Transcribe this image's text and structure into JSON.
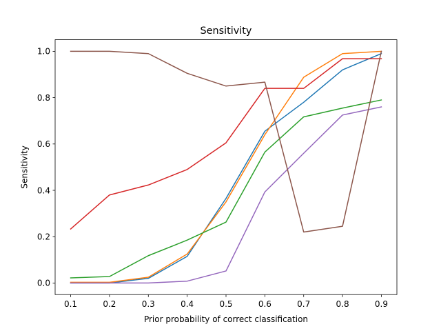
{
  "chart_data": {
    "type": "line",
    "title": "Sensitivity",
    "xlabel": "Prior probability of correct classification",
    "ylabel": "Sensitivity",
    "x": [
      0.1,
      0.2,
      0.3,
      0.4,
      0.5,
      0.6,
      0.7,
      0.8,
      0.9
    ],
    "xlim": [
      0.06,
      0.94
    ],
    "ylim": [
      -0.05,
      1.05
    ],
    "xticks": [
      "0.1",
      "0.2",
      "0.3",
      "0.4",
      "0.5",
      "0.6",
      "0.7",
      "0.8",
      "0.9"
    ],
    "yticks": [
      "0.0",
      "0.2",
      "0.4",
      "0.6",
      "0.8",
      "1.0"
    ],
    "grid": false,
    "series": [
      {
        "color": "#1f77b4",
        "values": [
          0.0,
          0.0,
          0.02,
          0.115,
          0.365,
          0.655,
          0.78,
          0.92,
          0.99
        ]
      },
      {
        "color": "#ff7f0e",
        "values": [
          0.003,
          0.003,
          0.025,
          0.125,
          0.35,
          0.64,
          0.888,
          0.99,
          1.0
        ]
      },
      {
        "color": "#2ca02c",
        "values": [
          0.022,
          0.028,
          0.118,
          0.185,
          0.263,
          0.565,
          0.717,
          0.755,
          0.79
        ]
      },
      {
        "color": "#d62728",
        "values": [
          0.233,
          0.38,
          0.423,
          0.49,
          0.605,
          0.84,
          0.84,
          0.968,
          0.968
        ]
      },
      {
        "color": "#9467bd",
        "values": [
          0.0,
          0.0,
          0.0,
          0.008,
          0.052,
          0.393,
          0.56,
          0.725,
          0.76
        ]
      },
      {
        "color": "#8c564b",
        "values": [
          1.0,
          1.0,
          0.99,
          0.905,
          0.85,
          0.867,
          0.22,
          0.245,
          1.0
        ]
      }
    ]
  }
}
